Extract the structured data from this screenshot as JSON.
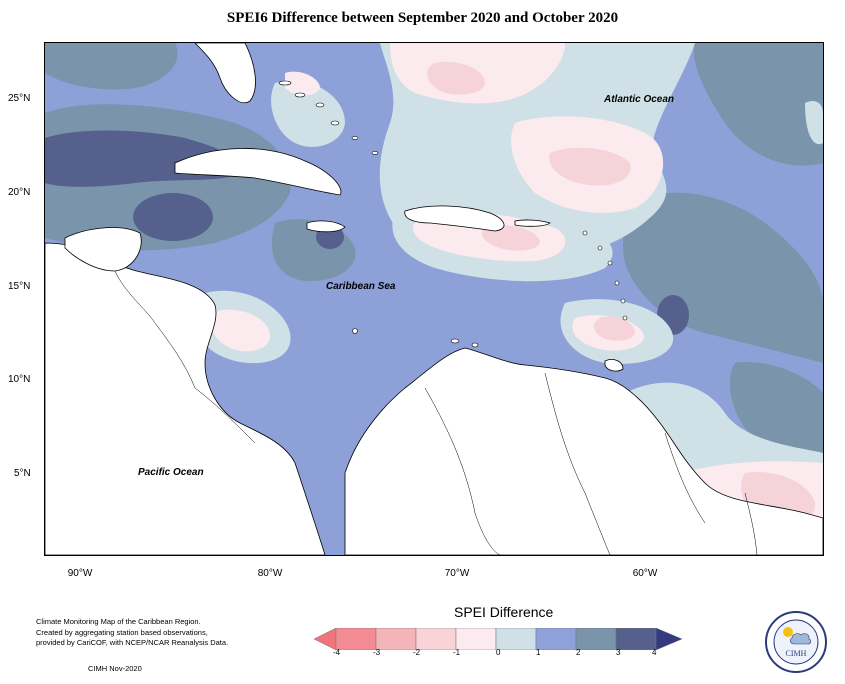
{
  "title": "SPEI6 Difference between September 2020 and October 2020",
  "ocean_labels": {
    "atlantic": "Atlantic Ocean",
    "caribbean": "Caribbean Sea",
    "pacific": "Pacific Ocean"
  },
  "lat_labels": [
    "25°N",
    "20°N",
    "15°N",
    "10°N",
    "5°N"
  ],
  "lon_labels": [
    "90°W",
    "80°W",
    "70°W",
    "60°W"
  ],
  "credit": {
    "line1": "Climate Monitoring Map of the Caribbean Region.",
    "line2": "Created by aggregating station based observations,",
    "line3": "provided by CariCOF, with NCEP/NCAR Reanalysis Data."
  },
  "stamp": "CIMH Nov-2020",
  "legend": {
    "title": "SPEI Difference",
    "ticks": [
      "-4",
      "-3",
      "-2",
      "-1",
      "0",
      "1",
      "2",
      "3",
      "4"
    ],
    "colors": [
      "#f28b94",
      "#f3b4ba",
      "#f8d4d8",
      "#fbebee",
      "#cfe0e6",
      "#8fa1da",
      "#7a94ac",
      "#56608c"
    ],
    "arrow_left_color": "#f0747c",
    "arrow_right_color": "#343a80"
  },
  "logo_text": "CIMH",
  "palette": {
    "dry1": "#fbebee",
    "dry2": "#f6d3d8",
    "dry3": "#f1b8c0",
    "neutral": "#cfe0e6",
    "wet1": "#8da0d8",
    "wet2": "#7a94ac",
    "wet3": "#56608c",
    "land": "#ffffff"
  }
}
